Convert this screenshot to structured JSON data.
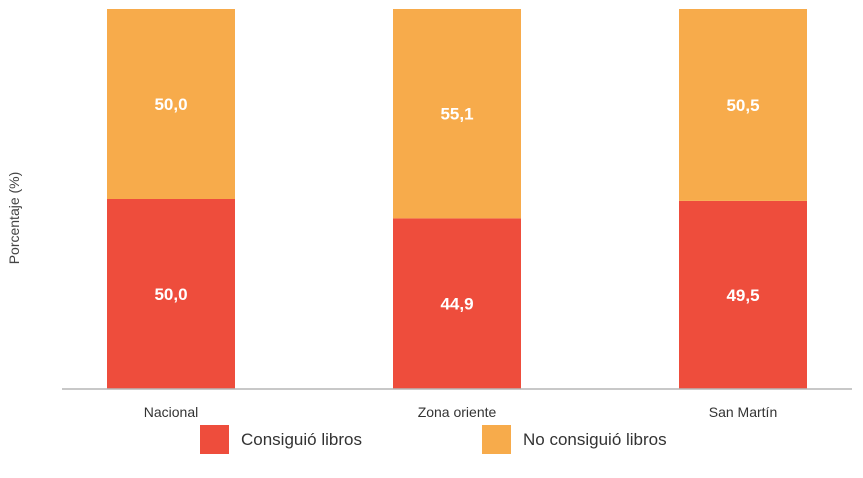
{
  "chart_data": {
    "type": "bar",
    "stacked": true,
    "title": "",
    "ylabel": "Porcentaje (%)",
    "categories": [
      "Nacional",
      "Zona oriente",
      "San Martín"
    ],
    "series": [
      {
        "name": "Consiguió libros",
        "color": "#ee4d3c",
        "values": [
          50.0,
          44.9,
          49.5
        ],
        "labels": [
          "50,0",
          "44,9",
          "49,5"
        ]
      },
      {
        "name": "No consiguió libros",
        "color": "#f7ab4b",
        "values": [
          50.0,
          55.1,
          50.5
        ],
        "labels": [
          "50,0",
          "55,1",
          "50,5"
        ]
      }
    ],
    "ylim": [
      0,
      100
    ],
    "grid": false,
    "legend_position": "bottom"
  }
}
